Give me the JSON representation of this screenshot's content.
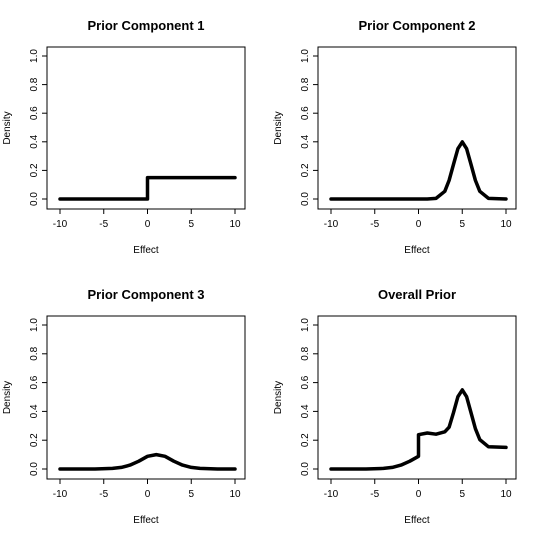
{
  "chart_data": [
    {
      "type": "line",
      "title": "Prior Component 1",
      "xlabel": "Effect",
      "ylabel": "Density",
      "xlim": [
        -10,
        10
      ],
      "ylim": [
        0,
        1
      ],
      "xticks": [
        "-10",
        "-5",
        "0",
        "5",
        "10"
      ],
      "yticks": [
        "0.0",
        "0.2",
        "0.4",
        "0.6",
        "0.8",
        "1.0"
      ],
      "grid": false,
      "series": [
        {
          "x": [
            -10,
            0,
            0,
            10
          ],
          "y": [
            0,
            0,
            0.15,
            0.15
          ],
          "color": "#000000"
        }
      ]
    },
    {
      "type": "line",
      "title": "Prior Component 2",
      "xlabel": "Effect",
      "ylabel": "Density",
      "xlim": [
        -10,
        10
      ],
      "ylim": [
        0,
        1
      ],
      "xticks": [
        "-10",
        "-5",
        "0",
        "5",
        "10"
      ],
      "yticks": [
        "0.0",
        "0.2",
        "0.4",
        "0.6",
        "0.8",
        "1.0"
      ],
      "grid": false,
      "series": [
        {
          "x": [
            -10,
            1,
            2,
            3,
            3.5,
            4,
            4.5,
            5,
            5.5,
            6,
            6.5,
            7,
            8,
            10
          ],
          "y": [
            0,
            0.0001,
            0.0044,
            0.054,
            0.13,
            0.242,
            0.352,
            0.399,
            0.352,
            0.242,
            0.13,
            0.054,
            0.0044,
            0
          ],
          "color": "#000000"
        }
      ]
    },
    {
      "type": "line",
      "title": "Prior Component 3",
      "xlabel": "Effect",
      "ylabel": "Density",
      "xlim": [
        -10,
        10
      ],
      "ylim": [
        0,
        1
      ],
      "xticks": [
        "-10",
        "-5",
        "0",
        "5",
        "10"
      ],
      "yticks": [
        "0.0",
        "0.2",
        "0.4",
        "0.6",
        "0.8",
        "1.0"
      ],
      "grid": false,
      "series": [
        {
          "x": [
            -10,
            -6,
            -4,
            -3,
            -2,
            -1,
            0,
            1,
            2,
            3,
            4,
            5,
            6,
            8,
            10
          ],
          "y": [
            0,
            0.0002,
            0.004,
            0.011,
            0.027,
            0.054,
            0.088,
            0.1,
            0.088,
            0.054,
            0.027,
            0.011,
            0.004,
            0.0002,
            0
          ],
          "color": "#000000"
        }
      ]
    },
    {
      "type": "line",
      "title": "Overall Prior",
      "xlabel": "Effect",
      "ylabel": "Density",
      "xlim": [
        -10,
        10
      ],
      "ylim": [
        0,
        1
      ],
      "xticks": [
        "-10",
        "-5",
        "0",
        "5",
        "10"
      ],
      "yticks": [
        "0.0",
        "0.2",
        "0.4",
        "0.6",
        "0.8",
        "1.0"
      ],
      "grid": false,
      "series": [
        {
          "x": [
            -10,
            -6,
            -4,
            -3,
            -2,
            -1,
            0,
            0,
            1,
            2,
            3,
            3.5,
            4,
            4.5,
            5,
            5.5,
            6,
            6.5,
            7,
            8,
            10
          ],
          "y": [
            0,
            0.0002,
            0.004,
            0.011,
            0.027,
            0.054,
            0.088,
            0.238,
            0.25,
            0.242,
            0.258,
            0.29,
            0.392,
            0.502,
            0.549,
            0.502,
            0.392,
            0.28,
            0.204,
            0.154,
            0.15
          ],
          "color": "#000000"
        }
      ]
    }
  ]
}
